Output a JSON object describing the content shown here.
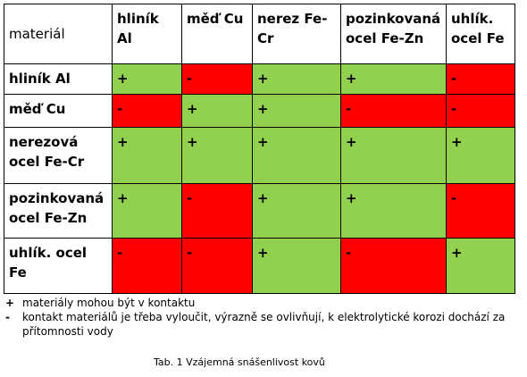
{
  "table": {
    "corner": "materiál",
    "columns": [
      "hliník Al",
      "měď Cu",
      "nerez Fe-Cr",
      "pozinkovaná ocel Fe-Zn",
      "uhlík. ocel Fe"
    ],
    "rows": [
      {
        "label": "hliník Al",
        "cells": [
          "+",
          "-",
          "+",
          "+",
          "-"
        ]
      },
      {
        "label": "měď Cu",
        "cells": [
          "-",
          "+",
          "+",
          "-",
          "-"
        ]
      },
      {
        "label": "nerezová ocel Fe-Cr",
        "cells": [
          "+",
          "+",
          "+",
          "+",
          "+"
        ]
      },
      {
        "label": "pozinkovaná ocel Fe-Zn",
        "cells": [
          "+",
          "-",
          "+",
          "+",
          "-"
        ]
      },
      {
        "label": "uhlík. ocel Fe",
        "cells": [
          "-",
          "-",
          "+",
          "-",
          "+"
        ]
      }
    ]
  },
  "legend": [
    {
      "symbol": "+",
      "text": "materiály mohou být v kontaktu"
    },
    {
      "symbol": "-",
      "text": "kontakt materiálů je třeba vyloučit, výrazně se ovlivňují, k elektrolytické korozi dochází za přítomnosti vody"
    }
  ],
  "caption": "Tab. 1 Vzájemná snášenlivost kovů",
  "colors": {
    "compatible": "#92d050",
    "incompatible": "#ff0000"
  }
}
